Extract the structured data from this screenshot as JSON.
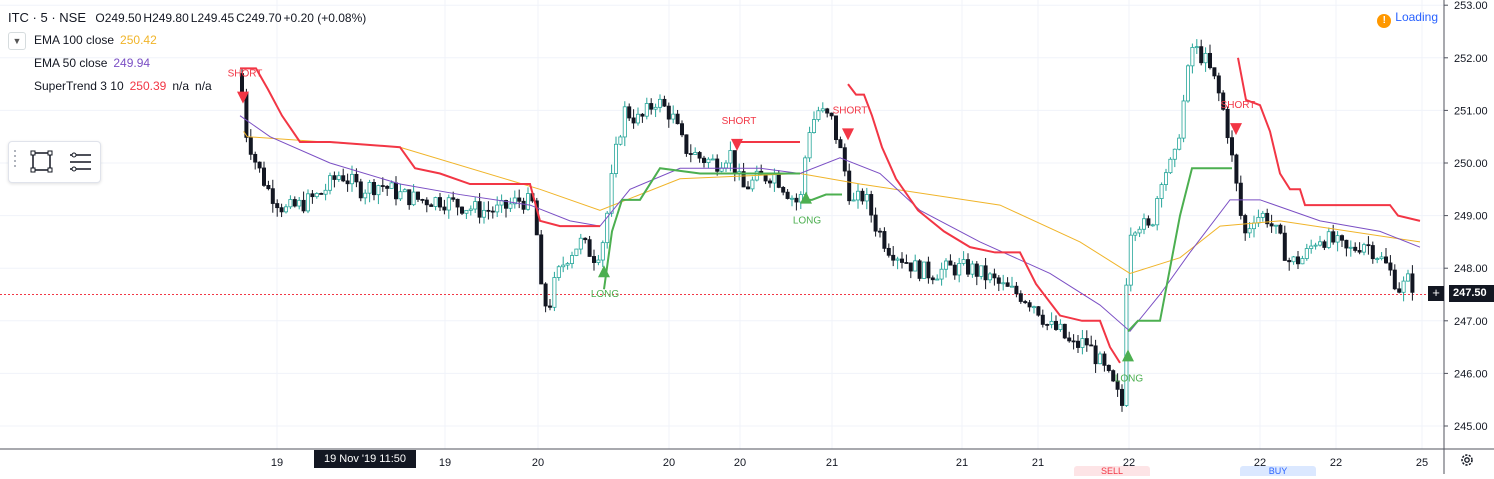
{
  "header": {
    "symbol": "ITC · 5 · NSE",
    "open": "O249.50",
    "high": "H249.80",
    "low": "L249.45",
    "close": "C249.70",
    "change": "+0.20 (+0.08%)"
  },
  "indicators": [
    {
      "name": "EMA 100 close",
      "value": "250.42",
      "color": "#f0b429"
    },
    {
      "name": "EMA 50 close",
      "value": "249.94",
      "color": "#7b4fc4"
    },
    {
      "name": "SuperTrend 3 10",
      "value": "250.39",
      "extra1": "n/a",
      "extra2": "n/a",
      "color": "#f23645"
    }
  ],
  "status": {
    "label": "Loading"
  },
  "crosshair": {
    "price_label": "247.50",
    "time_label": "19 Nov '19   11:50"
  },
  "order_tabs": {
    "sell": "SELL",
    "buy": "BUY"
  },
  "colors": {
    "up": "#26a69a",
    "down": "#131722",
    "supertrend_up": "#4caf50",
    "supertrend_down": "#f23645",
    "ema100": "#f0b429",
    "ema50": "#7b4fc4"
  },
  "chart_data": {
    "type": "candlestick",
    "price_axis": {
      "min": 245,
      "max": 253,
      "ticks": [
        "245.00",
        "246.00",
        "247.00",
        "248.00",
        "249.00",
        "250.00",
        "251.00",
        "252.00",
        "253.00"
      ]
    },
    "time_axis": {
      "ticks": [
        "19",
        "19",
        "20",
        "20",
        "20",
        "21",
        "21",
        "21",
        "22",
        "22",
        "22",
        "25"
      ]
    },
    "series": [
      {
        "name": "EMA 100 close",
        "values": [
          [
            250.9,
            250.6
          ],
          [
            251.8,
            250.5
          ],
          [
            400,
            250.3
          ],
          [
            540,
            249.5
          ],
          [
            600,
            249.1
          ],
          [
            680,
            249.7
          ],
          [
            800,
            249.8
          ],
          [
            860,
            249.6
          ],
          [
            1000,
            249.2
          ],
          [
            1080,
            248.5
          ],
          [
            1130,
            247.9
          ],
          [
            1180,
            248.2
          ],
          [
            1220,
            248.8
          ],
          [
            1280,
            248.9
          ],
          [
            1420,
            248.5
          ]
        ]
      }
    ],
    "signals": [
      {
        "label": "SHORT",
        "price": 251.7
      },
      {
        "label": "LONG",
        "price": 247.6
      },
      {
        "label": "SHORT",
        "price": 250.8
      },
      {
        "label": "LONG",
        "price": 249.0
      },
      {
        "label": "SHORT",
        "price": 251.0
      },
      {
        "label": "LONG",
        "price": 246.0
      },
      {
        "label": "SHORT",
        "price": 251.1
      }
    ],
    "last_price": 247.5,
    "grid": true
  }
}
